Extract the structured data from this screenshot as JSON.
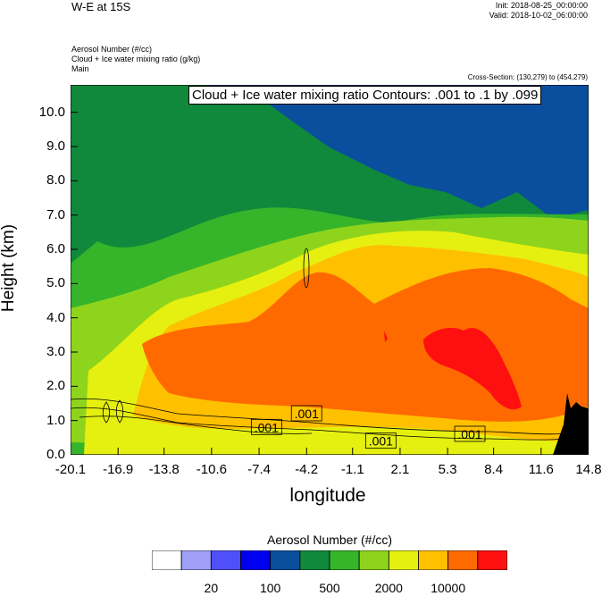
{
  "header": {
    "title": "W-E at 15S",
    "init": "Init: 2018-08-25_00:00:00",
    "valid": "Valid: 2018-10-02_06:00:00",
    "fields": [
      "Aerosol Number   (#/cc)",
      "Cloud + Ice water mixing ratio   (g/kg)",
      "Main"
    ],
    "cross_section": "Cross-Section: (130,279) to (454,279)"
  },
  "chart_data": {
    "type": "heatmap",
    "title": "W-E at 15S",
    "annotation": "Cloud + Ice water mixing ratio Contours: .001 to .1 by .099",
    "xlabel": "longitude",
    "ylabel": "Height (km)",
    "x_ticks": [
      "-20.1",
      "-16.9",
      "-13.8",
      "-10.6",
      "-7.4",
      "-4.2",
      "-1.1",
      "2.1",
      "5.3",
      "8.4",
      "11.6",
      "14.8"
    ],
    "y_ticks": [
      "0.0",
      "1.0",
      "2.0",
      "3.0",
      "4.0",
      "5.0",
      "6.0",
      "7.0",
      "8.0",
      "9.0",
      "10.0"
    ],
    "xlim": [
      -20.1,
      14.8
    ],
    "ylim": [
      0,
      10.8
    ],
    "contour_labels": [
      {
        "text": ".001",
        "x": -4.2,
        "y": 1.2
      },
      {
        "text": ".001",
        "x": -6.9,
        "y": 0.8
      },
      {
        "text": ".001",
        "x": 0.8,
        "y": 0.4
      },
      {
        "text": ".001",
        "x": 6.8,
        "y": 0.6
      }
    ],
    "colorbar": {
      "title": "Aerosol Number  (#/cc)",
      "colors": [
        "#ffffff",
        "#a0a0f8",
        "#5050f8",
        "#0000f0",
        "#0a4f9e",
        "#10893c",
        "#36b42a",
        "#8fd41c",
        "#e6f010",
        "#ffc000",
        "#ff6a00",
        "#ff1010"
      ],
      "labels": [
        "20",
        "100",
        "500",
        "2000",
        "10000"
      ]
    }
  }
}
